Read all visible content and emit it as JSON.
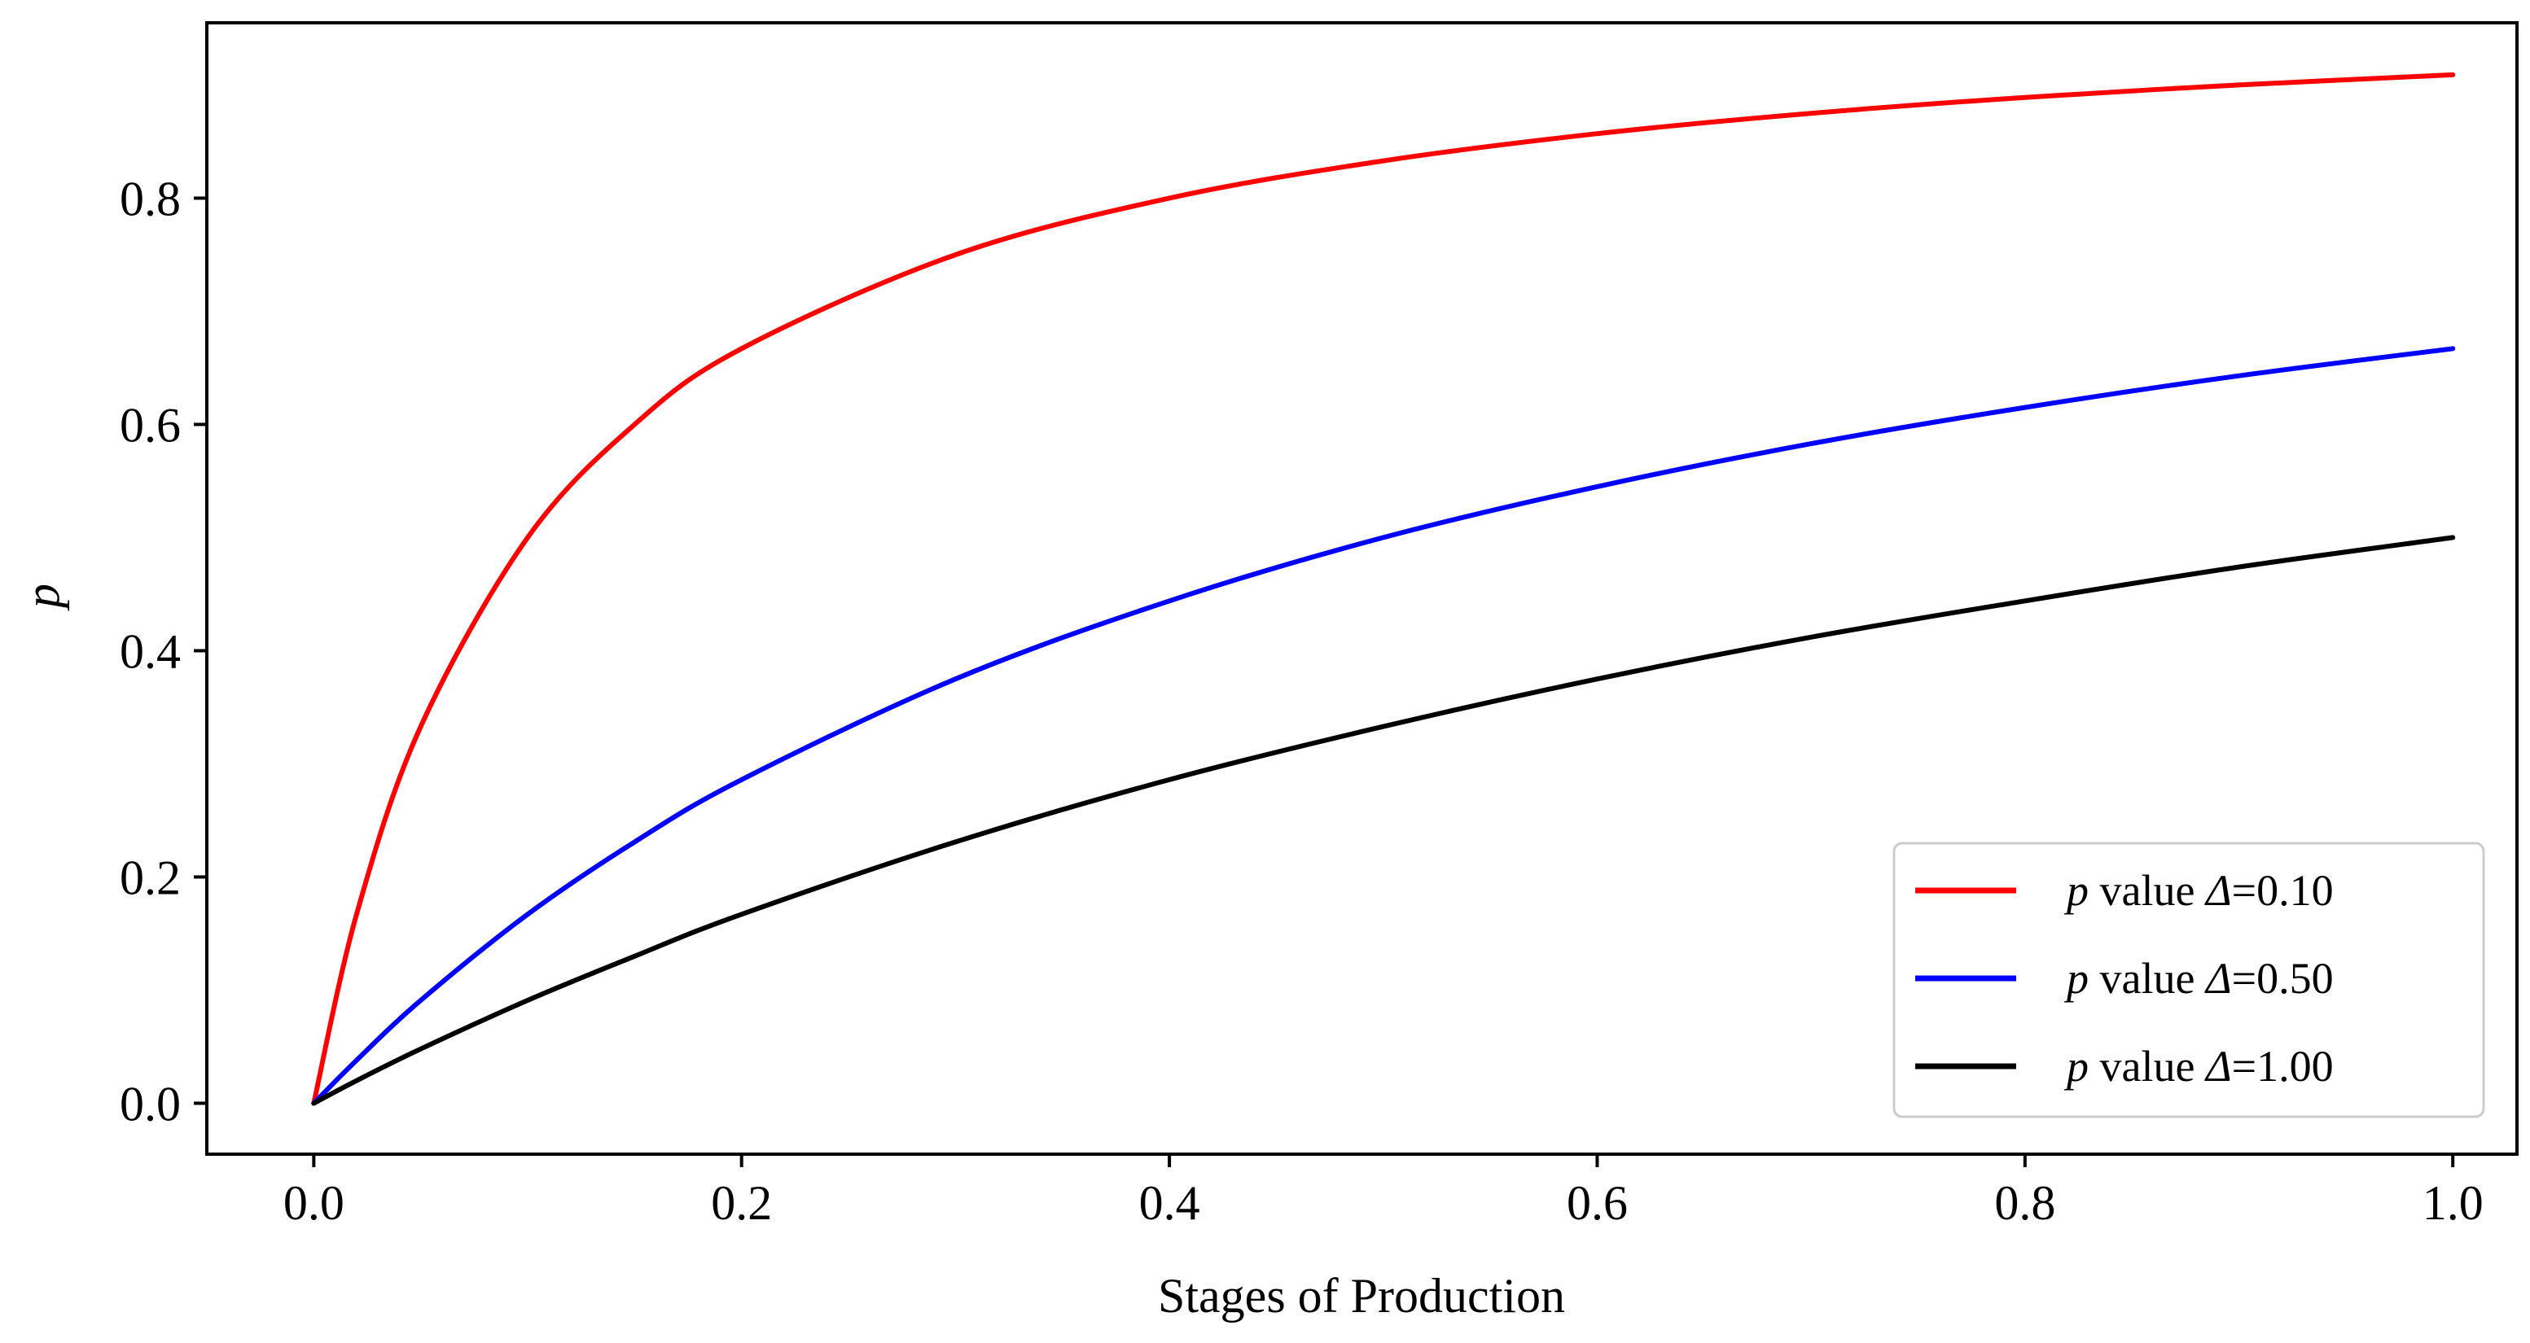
{
  "chart_data": {
    "type": "line",
    "title": "",
    "xlabel": "Stages of Production",
    "ylabel": "p",
    "xlim": [
      -0.05,
      1.03
    ],
    "ylim": [
      -0.045,
      0.955
    ],
    "x_ticks": [
      0.0,
      0.2,
      0.4,
      0.6,
      0.8,
      1.0
    ],
    "x_tick_labels": [
      "0.0",
      "0.2",
      "0.4",
      "0.6",
      "0.8",
      "1.0"
    ],
    "y_ticks": [
      0.0,
      0.2,
      0.4,
      0.6,
      0.8
    ],
    "y_tick_labels": [
      "0.0",
      "0.2",
      "0.4",
      "0.6",
      "0.8"
    ],
    "grid": false,
    "legend_position": "bottom-right",
    "x": [
      0.0,
      0.02,
      0.05,
      0.1,
      0.15,
      0.2,
      0.3,
      0.4,
      0.5,
      0.6,
      0.7,
      0.8,
      0.9,
      1.0
    ],
    "series": [
      {
        "name": "p value Δ=0.10",
        "legend_symbol": "p",
        "legend_text": " value ",
        "legend_delta": "Δ",
        "legend_value": "=0.10",
        "color": "#ff0000",
        "values": [
          0.0,
          0.167,
          0.333,
          0.5,
          0.6,
          0.667,
          0.75,
          0.8,
          0.833,
          0.857,
          0.875,
          0.889,
          0.9,
          0.909
        ]
      },
      {
        "name": "p value Δ=0.50",
        "legend_symbol": "p",
        "legend_text": " value ",
        "legend_delta": "Δ",
        "legend_value": "=0.50",
        "color": "#0000ff",
        "values": [
          0.0,
          0.038,
          0.091,
          0.167,
          0.231,
          0.286,
          0.375,
          0.444,
          0.5,
          0.545,
          0.583,
          0.615,
          0.643,
          0.667
        ]
      },
      {
        "name": "p value Δ=1.00",
        "legend_symbol": "p",
        "legend_text": " value ",
        "legend_delta": "Δ",
        "legend_value": "=1.00",
        "color": "#000000",
        "values": [
          0.0,
          0.02,
          0.048,
          0.091,
          0.13,
          0.167,
          0.231,
          0.286,
          0.333,
          0.375,
          0.412,
          0.444,
          0.474,
          0.5
        ]
      }
    ]
  }
}
